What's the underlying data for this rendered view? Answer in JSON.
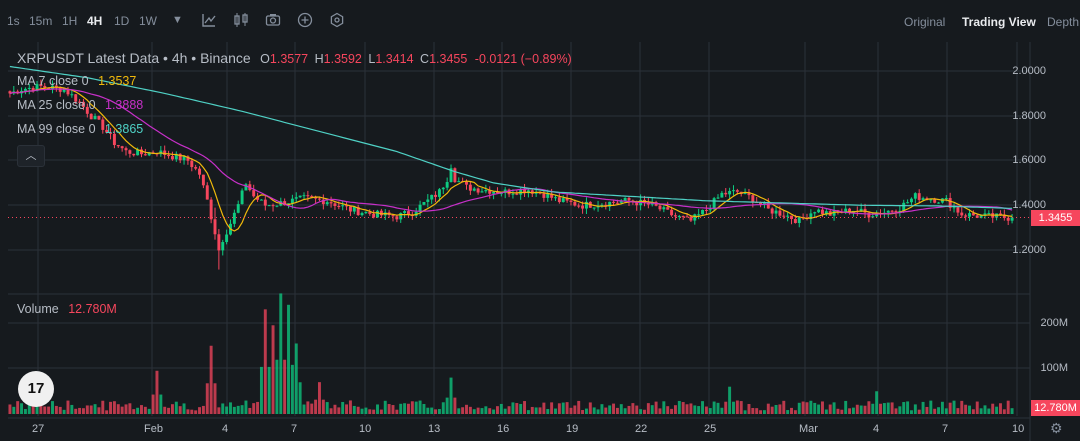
{
  "toolbar": {
    "timeframes": [
      "1s",
      "15m",
      "1H",
      "4H",
      "1D",
      "1W"
    ],
    "active_timeframe": "4H",
    "dropdown_icon": "chevron-down-icon",
    "tools": [
      "indicator-line-icon",
      "candles-icon",
      "camera-icon",
      "plus-circle-icon",
      "hexagon-icon"
    ],
    "views": [
      "Original",
      "Trading View",
      "Depth"
    ],
    "active_view": "Trading View"
  },
  "legend": {
    "title": "XRPUSDT Latest Data • 4h • Binance",
    "open_label": "O",
    "open": "1.3577",
    "high_label": "H",
    "high": "1.3592",
    "low_label": "L",
    "low": "1.3414",
    "close_label": "C",
    "close": "1.3455",
    "change": "-0.0121 (−0.89%)",
    "ma7_label": "MA 7 close 0",
    "ma7": "1.3537",
    "ma25_label": "MA 25 close 0",
    "ma25": "1.3888",
    "ma99_label": "MA 99 close 0",
    "ma99": "1.3865",
    "volume_label": "Volume",
    "volume": "12.780M"
  },
  "collapse_icon": "chevron-up-icon",
  "logo_text": "17",
  "price_tag": "1.3455",
  "volume_tag": "12.780M",
  "colors": {
    "up": "#0ecb81",
    "down": "#f6465d",
    "ma7": "#f0b90b",
    "ma25": "#c730c9",
    "ma99": "#4fd1c5",
    "background": "#161a1e",
    "grid": "#2b3139"
  },
  "chart_data": {
    "type": "candlestick",
    "symbol": "XRPUSDT",
    "interval": "4h",
    "price_axis": {
      "ticks": [
        1.2,
        1.4,
        1.6,
        1.8,
        2.0
      ],
      "tick_labels": [
        "1.2000",
        "1.4000",
        "1.6000",
        "1.8000",
        "2.0000"
      ],
      "range": [
        1.1,
        2.05
      ]
    },
    "volume_axis": {
      "ticks": [
        100,
        200
      ],
      "tick_labels": [
        "100M",
        "200M"
      ],
      "unit": "M"
    },
    "x_tick_labels": [
      "27",
      "Feb",
      "4",
      "7",
      "10",
      "13",
      "16",
      "19",
      "22",
      "25",
      "Mar",
      "4",
      "7",
      "10"
    ],
    "last_close": 1.3455,
    "close_path": [
      [
        0,
        1.9
      ],
      [
        3,
        1.92
      ],
      [
        8,
        1.93
      ],
      [
        14,
        1.92
      ],
      [
        18,
        1.86
      ],
      [
        21,
        1.8
      ],
      [
        24,
        1.75
      ],
      [
        27,
        1.68
      ],
      [
        30,
        1.64
      ],
      [
        34,
        1.63
      ],
      [
        38,
        1.64
      ],
      [
        42,
        1.62
      ],
      [
        46,
        1.6
      ],
      [
        49,
        1.54
      ],
      [
        51,
        1.42
      ],
      [
        53,
        1.28
      ],
      [
        54,
        1.2
      ],
      [
        55,
        1.25
      ],
      [
        57,
        1.32
      ],
      [
        59,
        1.4
      ],
      [
        61,
        1.5
      ],
      [
        63,
        1.44
      ],
      [
        66,
        1.4
      ],
      [
        70,
        1.41
      ],
      [
        76,
        1.43
      ],
      [
        82,
        1.42
      ],
      [
        88,
        1.38
      ],
      [
        94,
        1.36
      ],
      [
        100,
        1.35
      ],
      [
        104,
        1.37
      ],
      [
        108,
        1.42
      ],
      [
        111,
        1.46
      ],
      [
        113,
        1.52
      ],
      [
        114,
        1.58
      ],
      [
        115,
        1.52
      ],
      [
        118,
        1.48
      ],
      [
        122,
        1.47
      ],
      [
        128,
        1.46
      ],
      [
        134,
        1.47
      ],
      [
        138,
        1.45
      ],
      [
        142,
        1.42
      ],
      [
        148,
        1.4
      ],
      [
        154,
        1.41
      ],
      [
        160,
        1.42
      ],
      [
        166,
        1.4
      ],
      [
        172,
        1.35
      ],
      [
        176,
        1.33
      ],
      [
        180,
        1.38
      ],
      [
        184,
        1.45
      ],
      [
        188,
        1.46
      ],
      [
        192,
        1.43
      ],
      [
        196,
        1.38
      ],
      [
        200,
        1.36
      ],
      [
        204,
        1.33
      ],
      [
        208,
        1.38
      ],
      [
        212,
        1.36
      ],
      [
        218,
        1.38
      ],
      [
        222,
        1.36
      ],
      [
        226,
        1.37
      ],
      [
        230,
        1.39
      ],
      [
        234,
        1.44
      ],
      [
        238,
        1.43
      ],
      [
        242,
        1.42
      ],
      [
        246,
        1.36
      ],
      [
        252,
        1.35
      ],
      [
        258,
        1.3455
      ]
    ],
    "ma99_path": [
      [
        0,
        2.02
      ],
      [
        20,
        1.97
      ],
      [
        40,
        1.9
      ],
      [
        60,
        1.82
      ],
      [
        80,
        1.73
      ],
      [
        100,
        1.64
      ],
      [
        115,
        1.55
      ],
      [
        125,
        1.5
      ],
      [
        140,
        1.46
      ],
      [
        160,
        1.44
      ],
      [
        180,
        1.42
      ],
      [
        200,
        1.41
      ],
      [
        220,
        1.4
      ],
      [
        240,
        1.397
      ],
      [
        258,
        1.3865
      ]
    ],
    "volume_spikes": [
      [
        38,
        95
      ],
      [
        52,
        150
      ],
      [
        66,
        230
      ],
      [
        68,
        195
      ],
      [
        70,
        265
      ],
      [
        72,
        240
      ],
      [
        74,
        155
      ],
      [
        80,
        70
      ],
      [
        114,
        80
      ],
      [
        186,
        60
      ],
      [
        224,
        50
      ]
    ]
  }
}
